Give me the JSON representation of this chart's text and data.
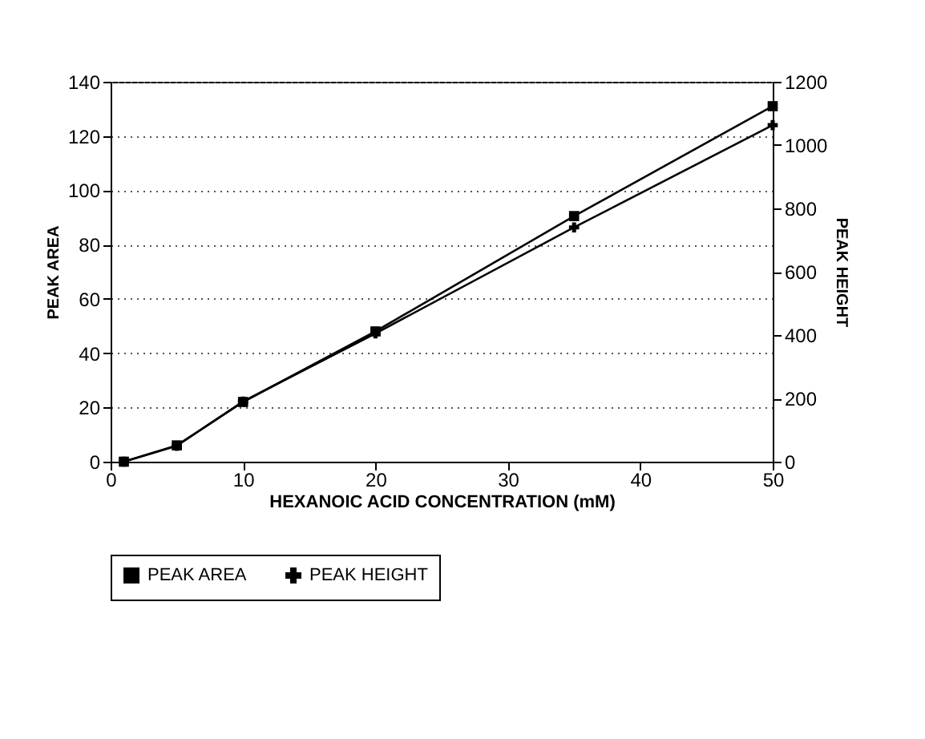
{
  "chart_data": {
    "type": "line",
    "xlabel": "HEXANOIC ACID CONCENTRATION (mM)",
    "ylabel": "PEAK AREA",
    "y2label": "PEAK HEIGHT",
    "x": [
      1,
      5,
      10,
      20,
      35,
      50
    ],
    "series": [
      {
        "name": "PEAK AREA",
        "color": "#000000",
        "marker": "square",
        "values": [
          0,
          6,
          22,
          48,
          90.5,
          131
        ]
      },
      {
        "name": "PEAK HEIGHT",
        "color": "#000000",
        "marker": "cross",
        "axis": "y2",
        "values": [
          0,
          50,
          190,
          405,
          740,
          1063
        ]
      }
    ],
    "xlim": [
      0,
      50
    ],
    "xticks": [
      0,
      10,
      20,
      30,
      40,
      50
    ],
    "ylim": [
      0,
      140
    ],
    "yticks": [
      0,
      20,
      40,
      60,
      80,
      100,
      120,
      140
    ],
    "y2lim": [
      0,
      1200
    ],
    "y2ticks": [
      0,
      200,
      400,
      600,
      800,
      1000,
      1200
    ],
    "grid": "y",
    "legend": "bottom",
    "line_style": "solid"
  }
}
